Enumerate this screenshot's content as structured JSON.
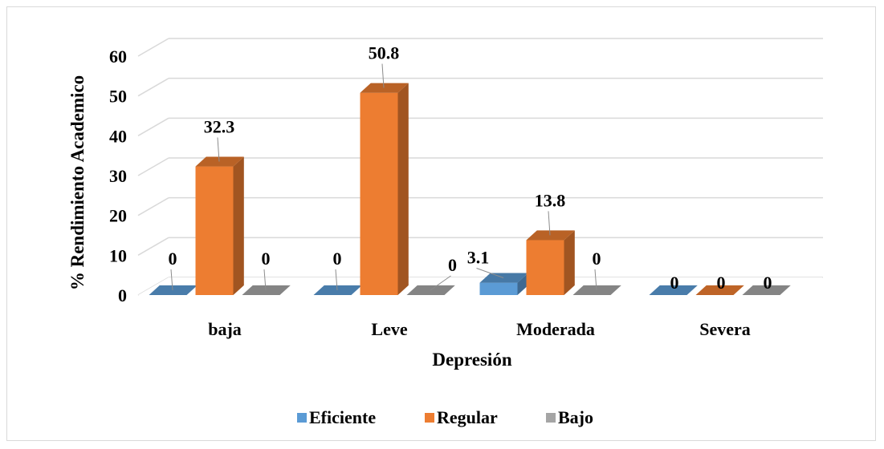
{
  "chart_data": {
    "type": "bar",
    "style": "3d-clustered-column",
    "title": "",
    "xlabel": "Depresión",
    "ylabel": "% Rendimiento Academico",
    "categories": [
      "baja",
      "Leve",
      "Moderada",
      "Severa"
    ],
    "series": [
      {
        "name": "Eficiente",
        "values": [
          0,
          0,
          3.1,
          0
        ],
        "labels": [
          "0",
          "0",
          "3.1",
          "0"
        ],
        "color": "#5b9bd5"
      },
      {
        "name": "Regular",
        "values": [
          32.3,
          50.8,
          13.8,
          0
        ],
        "labels": [
          "32.3",
          "50.8",
          "13.8",
          "0"
        ],
        "color": "#ed7d31"
      },
      {
        "name": "Bajo",
        "values": [
          0,
          0,
          0,
          0
        ],
        "labels": [
          "0",
          "0",
          "0",
          "0"
        ],
        "color": "#a5a5a5"
      }
    ],
    "ylim": [
      0,
      60
    ],
    "yticks": [
      "0",
      "10",
      "20",
      "30",
      "40",
      "50",
      "60"
    ],
    "grid": true,
    "legend_position": "bottom"
  }
}
